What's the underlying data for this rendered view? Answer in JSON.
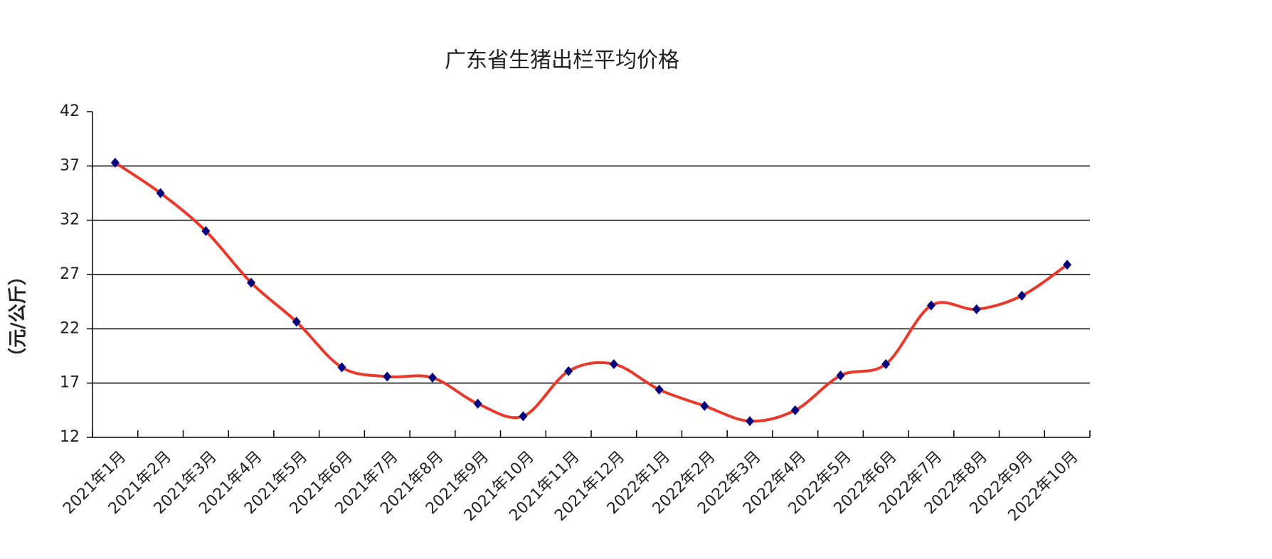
{
  "chart_data": {
    "type": "line",
    "title": "广东省生猪出栏平均价格",
    "y_label": "（元/公斤）",
    "categories": [
      "2021年1月",
      "2021年2月",
      "2021年3月",
      "2021年4月",
      "2021年5月",
      "2021年6月",
      "2021年7月",
      "2021年8月",
      "2021年9月",
      "2021年10月",
      "2021年11月",
      "2021年12月",
      "2022年1月",
      "2022年2月",
      "2022年3月",
      "2022年4月",
      "2022年5月",
      "2022年6月",
      "2022年7月",
      "2022年8月",
      "2022年9月",
      "2022年10月"
    ],
    "values": [
      37.3,
      34.5,
      31.0,
      26.25,
      22.65,
      18.45,
      17.6,
      17.5,
      15.1,
      13.95,
      18.1,
      18.75,
      16.4,
      14.9,
      13.5,
      14.5,
      17.7,
      18.75,
      24.15,
      23.8,
      25.05,
      27.9
    ],
    "color": "#e8392a",
    "marker_color": "#00007f",
    "ylim": [
      12,
      42
    ],
    "yticks": [
      12,
      17,
      22,
      27,
      32,
      37,
      42
    ],
    "grid": true
  }
}
